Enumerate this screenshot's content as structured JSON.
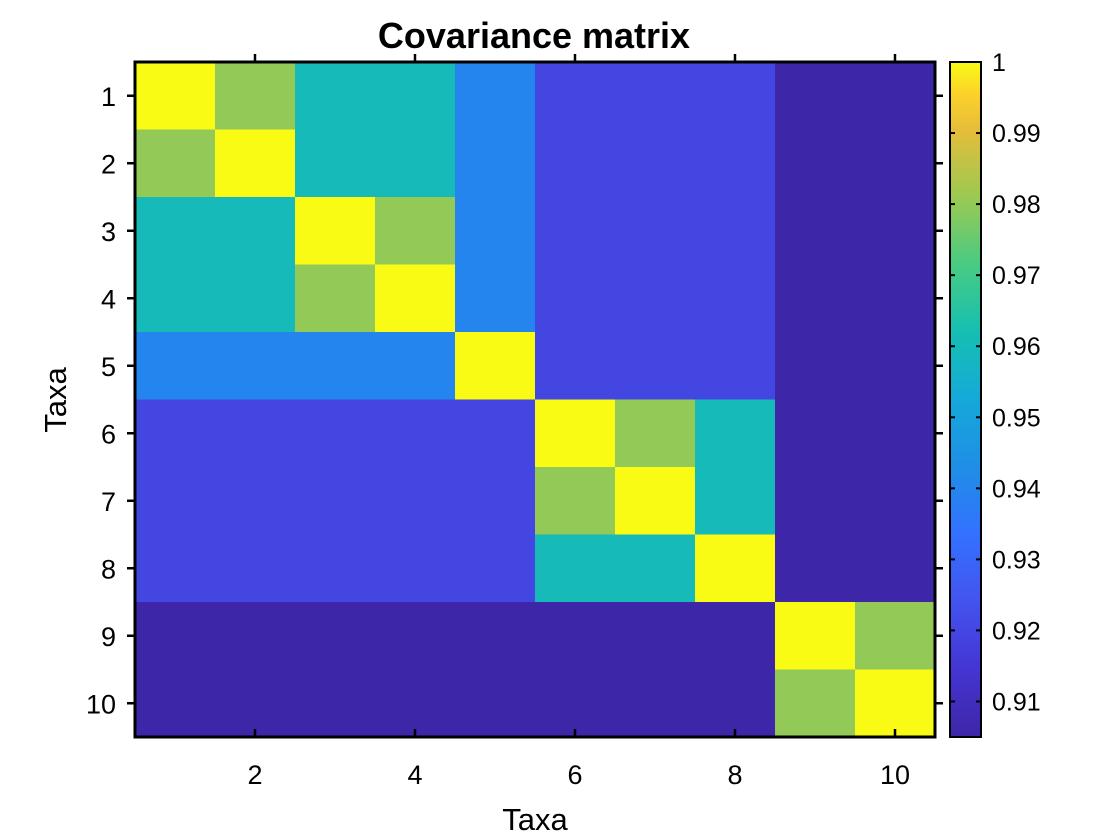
{
  "chart_data": {
    "type": "heatmap",
    "title": "Covariance matrix",
    "xlabel": "Taxa",
    "ylabel": "Taxa",
    "x_categories": [
      1,
      2,
      3,
      4,
      5,
      6,
      7,
      8,
      9,
      10
    ],
    "y_categories": [
      1,
      2,
      3,
      4,
      5,
      6,
      7,
      8,
      9,
      10
    ],
    "x_tick_labels": [
      "2",
      "4",
      "6",
      "8",
      "10"
    ],
    "x_tick_values": [
      2,
      4,
      6,
      8,
      10
    ],
    "y_tick_labels": [
      "1",
      "2",
      "3",
      "4",
      "5",
      "6",
      "7",
      "8",
      "9",
      "10"
    ],
    "values": [
      [
        1.0,
        0.98,
        0.96,
        0.96,
        0.94,
        0.92,
        0.92,
        0.92,
        0.905,
        0.905
      ],
      [
        0.98,
        1.0,
        0.96,
        0.96,
        0.94,
        0.92,
        0.92,
        0.92,
        0.905,
        0.905
      ],
      [
        0.96,
        0.96,
        1.0,
        0.98,
        0.94,
        0.92,
        0.92,
        0.92,
        0.905,
        0.905
      ],
      [
        0.96,
        0.96,
        0.98,
        1.0,
        0.94,
        0.92,
        0.92,
        0.92,
        0.905,
        0.905
      ],
      [
        0.94,
        0.94,
        0.94,
        0.94,
        1.0,
        0.92,
        0.92,
        0.92,
        0.905,
        0.905
      ],
      [
        0.92,
        0.92,
        0.92,
        0.92,
        0.92,
        1.0,
        0.98,
        0.96,
        0.905,
        0.905
      ],
      [
        0.92,
        0.92,
        0.92,
        0.92,
        0.92,
        0.98,
        1.0,
        0.96,
        0.905,
        0.905
      ],
      [
        0.92,
        0.92,
        0.92,
        0.92,
        0.92,
        0.96,
        0.96,
        1.0,
        0.905,
        0.905
      ],
      [
        0.905,
        0.905,
        0.905,
        0.905,
        0.905,
        0.905,
        0.905,
        0.905,
        1.0,
        0.98
      ],
      [
        0.905,
        0.905,
        0.905,
        0.905,
        0.905,
        0.905,
        0.905,
        0.905,
        0.98,
        1.0
      ]
    ],
    "colorbar": {
      "colormap": "parula",
      "range": [
        0.905,
        1.0
      ],
      "tick_values": [
        0.91,
        0.92,
        0.93,
        0.94,
        0.95,
        0.96,
        0.97,
        0.98,
        0.99,
        1.0
      ],
      "tick_labels": [
        "0.91",
        "0.92",
        "0.93",
        "0.94",
        "0.95",
        "0.96",
        "0.97",
        "0.98",
        "0.99",
        "1"
      ],
      "position": "right"
    }
  }
}
